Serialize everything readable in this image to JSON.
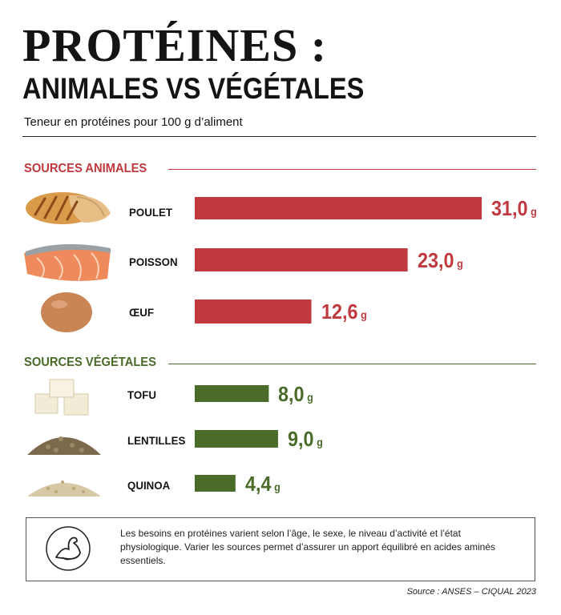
{
  "header": {
    "title_line1": "PROTÉINES :",
    "title_line2": "ANIMALES VS VÉGÉTALES",
    "subtitle": "Teneur en protéines pour 100 g d’aliment"
  },
  "colors": {
    "animal": "#c0393e",
    "vegetal": "#4a6b2a"
  },
  "chart_data": {
    "type": "bar",
    "unit": "g",
    "sections": [
      {
        "title": "SOURCES ANIMALES",
        "color": "#c0393e",
        "items": [
          {
            "label": "POULET",
            "value": 31.0,
            "display": "31,0",
            "icon": "grilled-chicken-illustration"
          },
          {
            "label": "POISSON",
            "value": 23.0,
            "display": "23,0",
            "icon": "salmon-fillet-illustration"
          },
          {
            "label": "ŒUF",
            "value": 12.6,
            "display": "12,6",
            "icon": "egg-illustration"
          }
        ]
      },
      {
        "title": "SOURCES VÉGÉTALES",
        "color": "#4a6b2a",
        "items": [
          {
            "label": "TOFU",
            "value": 8.0,
            "display": "8,0",
            "icon": "tofu-cubes-illustration"
          },
          {
            "label": "LENTILLES",
            "value": 9.0,
            "display": "9,0",
            "icon": "lentils-pile-illustration"
          },
          {
            "label": "QUINOA",
            "value": 4.4,
            "display": "4,4",
            "icon": "quinoa-pile-illustration"
          }
        ]
      }
    ]
  },
  "note": {
    "icon": "flexed-arm-icon",
    "text": "Les besoins en protéines varient selon l’âge, le sexe, le niveau d’activité et l’état physiologique. Varier les sources permet d’assurer un apport équilibré en acides aminés essentiels."
  },
  "source": "Source : ANSES – CIQUAL 2023"
}
